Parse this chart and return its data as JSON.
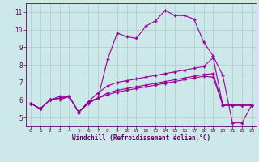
{
  "xlabel": "Windchill (Refroidissement éolien,°C)",
  "background_color": "#cce8e8",
  "grid_color": "#aacccc",
  "line_color": "#990099",
  "xlim": [
    -0.5,
    23.5
  ],
  "ylim": [
    4.5,
    11.5
  ],
  "xticks": [
    0,
    1,
    2,
    3,
    4,
    5,
    6,
    7,
    8,
    9,
    10,
    11,
    12,
    13,
    14,
    15,
    16,
    17,
    18,
    19,
    20,
    21,
    22,
    23
  ],
  "yticks": [
    5,
    6,
    7,
    8,
    9,
    10,
    11
  ],
  "series1_x": [
    0,
    1,
    2,
    3,
    4,
    5,
    6,
    7,
    8,
    9,
    10,
    11,
    12,
    13,
    14,
    15,
    16,
    17,
    18,
    19,
    20,
    21,
    22,
    23
  ],
  "series1_y": [
    5.8,
    5.5,
    6.0,
    6.0,
    6.2,
    5.3,
    5.8,
    6.1,
    8.3,
    9.8,
    9.6,
    9.5,
    10.2,
    10.5,
    11.1,
    10.8,
    10.8,
    10.6,
    9.3,
    8.5,
    7.4,
    4.7,
    4.7,
    5.7
  ],
  "series2_x": [
    0,
    1,
    2,
    3,
    4,
    5,
    6,
    7,
    8,
    9,
    10,
    11,
    12,
    13,
    14,
    15,
    16,
    17,
    18,
    19,
    20,
    21,
    22,
    23
  ],
  "series2_y": [
    5.8,
    5.5,
    6.0,
    6.1,
    6.2,
    5.3,
    5.9,
    6.4,
    6.8,
    7.0,
    7.1,
    7.2,
    7.3,
    7.4,
    7.5,
    7.6,
    7.7,
    7.8,
    7.9,
    8.4,
    5.7,
    5.7,
    5.7,
    5.7
  ],
  "series3_x": [
    0,
    1,
    2,
    3,
    4,
    5,
    6,
    7,
    8,
    9,
    10,
    11,
    12,
    13,
    14,
    15,
    16,
    17,
    18,
    19,
    20,
    21,
    22,
    23
  ],
  "series3_y": [
    5.8,
    5.5,
    6.0,
    6.1,
    6.2,
    5.3,
    5.85,
    6.1,
    6.4,
    6.55,
    6.65,
    6.75,
    6.85,
    6.95,
    7.05,
    7.15,
    7.25,
    7.35,
    7.45,
    7.5,
    5.7,
    5.7,
    5.7,
    5.7
  ],
  "series4_x": [
    0,
    1,
    2,
    3,
    4,
    5,
    6,
    7,
    8,
    9,
    10,
    11,
    12,
    13,
    14,
    15,
    16,
    17,
    18,
    19,
    20,
    21,
    22,
    23
  ],
  "series4_y": [
    5.8,
    5.5,
    6.0,
    6.2,
    6.2,
    5.3,
    5.9,
    6.1,
    6.3,
    6.45,
    6.55,
    6.65,
    6.75,
    6.85,
    6.95,
    7.05,
    7.15,
    7.25,
    7.35,
    7.3,
    5.7,
    5.7,
    5.7,
    5.7
  ]
}
